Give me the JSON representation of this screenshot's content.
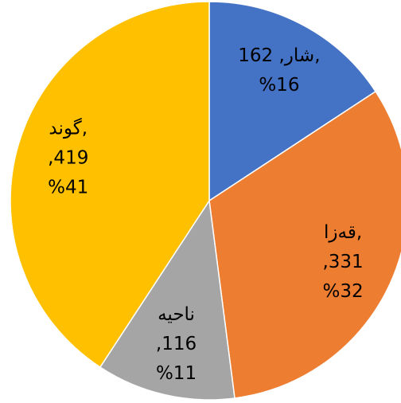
{
  "chart_data": {
    "type": "pie",
    "categories": [
      "شار",
      "قەزا",
      "ناحیە",
      "گوند"
    ],
    "values": [
      162,
      331,
      116,
      419
    ],
    "colors": [
      "#4472c4",
      "#ed7d31",
      "#a5a5a5",
      "#ffc000"
    ],
    "value_labels": [
      [
        "شار, 162,",
        "%16"
      ],
      [
        "قەزا,",
        ",331",
        "%32"
      ],
      [
        "ناحیە",
        ",116",
        "%11"
      ],
      [
        "گوند,",
        ",419",
        "%41"
      ]
    ]
  }
}
